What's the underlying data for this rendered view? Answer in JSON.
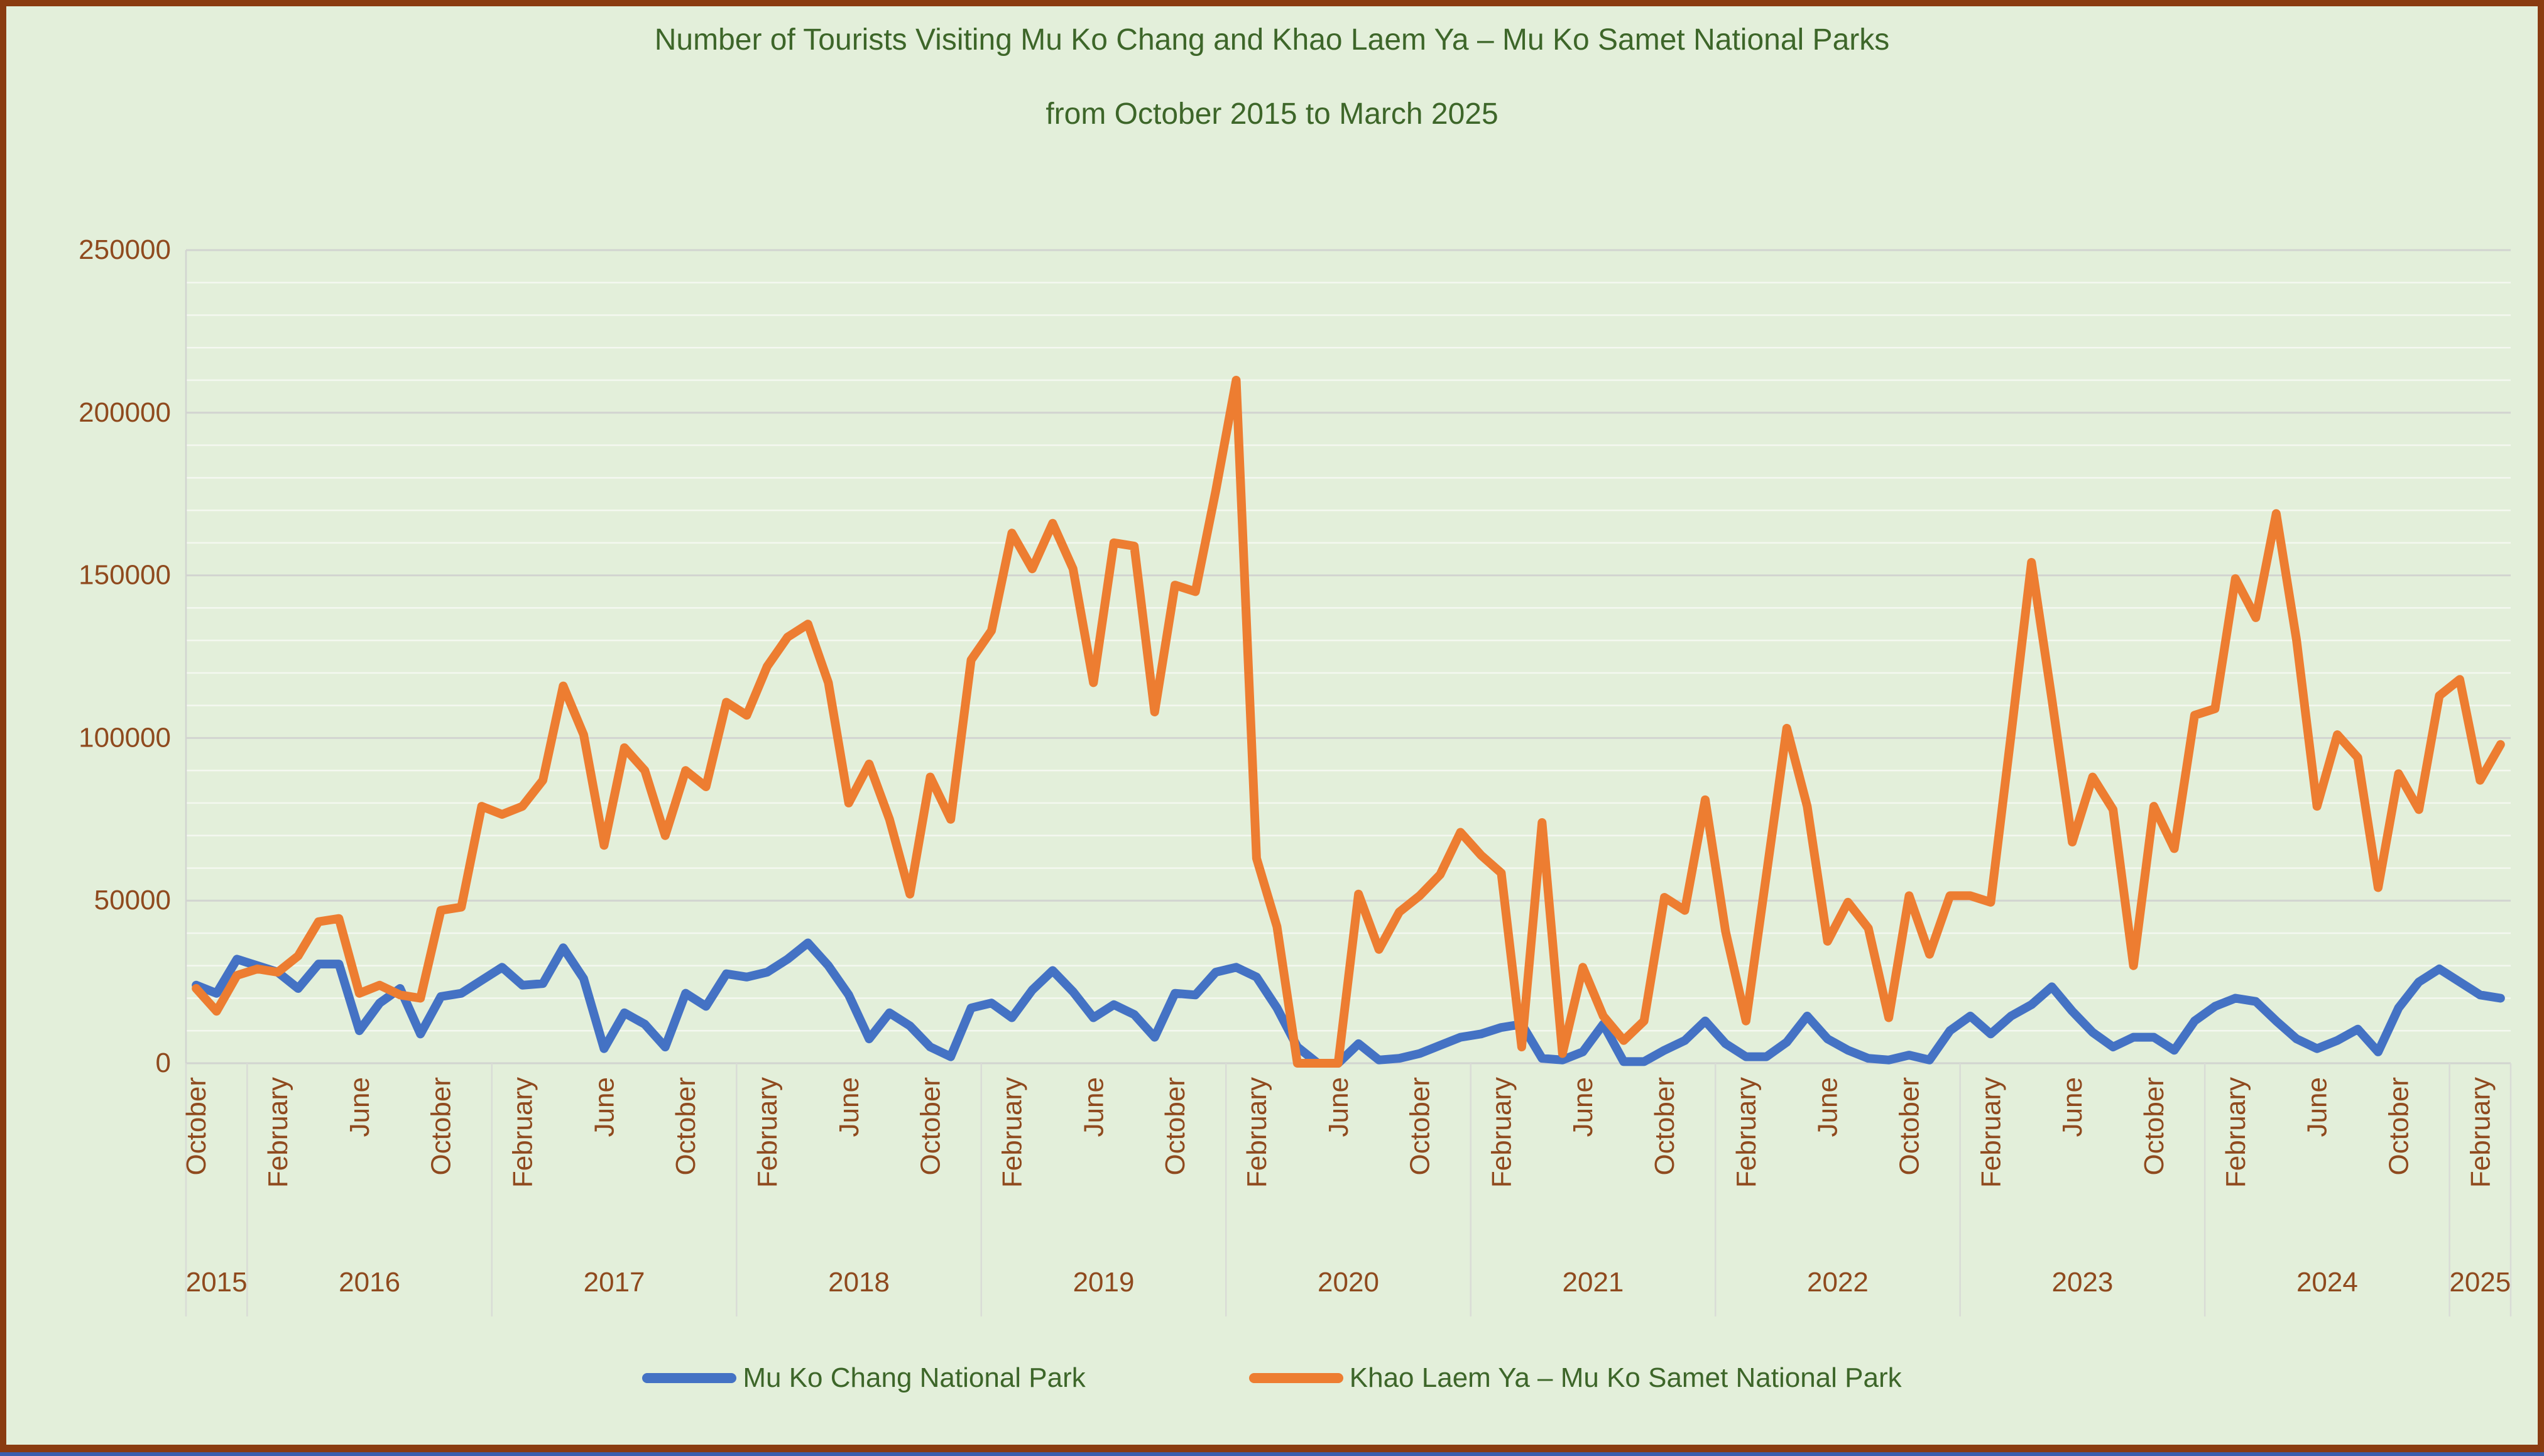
{
  "title": {
    "line1": "Number of Tourists Visiting Mu Ko Chang and Khao Laem Ya – Mu Ko Samet National Parks",
    "line2": "from October 2015 to March 2025"
  },
  "legend": [
    {
      "label": "Mu Ko Chang National Park",
      "color": "#4472C4"
    },
    {
      "label": "Khao Laem Ya – Mu Ko Samet National Park",
      "color": "#ED7D31"
    }
  ],
  "colors": {
    "background": "#e3efda",
    "frame_brown": "#8a3c10",
    "bottom_blue": "#3b5fae",
    "title_green": "#3d6629",
    "axis_label_brown": "#8f4a1e",
    "major_grid": "#d2d4d0",
    "minor_grid": "#f4f8f0",
    "series_blue": "#4472C4",
    "series_orange": "#ED7D31"
  },
  "chart_data": {
    "type": "line",
    "title": "Number of Tourists Visiting Mu Ko Chang and Khao Laem Ya – Mu Ko Samet National Parks from October 2015 to March 2025",
    "xlabel": "",
    "ylabel": "",
    "ylim": [
      0,
      250000
    ],
    "y_ticks": [
      0,
      50000,
      100000,
      150000,
      200000,
      250000
    ],
    "minor_grid_step": 10000,
    "grid": true,
    "legend_position": "bottom",
    "x_tick_every": 4,
    "month_name_map": {
      "Oct": "October",
      "Nov": "November",
      "Dec": "December",
      "Jan": "January",
      "Feb": "February",
      "Mar": "March",
      "Apr": "April",
      "May": "May",
      "Jun": "June",
      "Jul": "July",
      "Aug": "August",
      "Sep": "September"
    },
    "categories": [
      "Oct 2015",
      "Nov 2015",
      "Dec 2015",
      "Jan 2016",
      "Feb 2016",
      "Mar 2016",
      "Apr 2016",
      "May 2016",
      "Jun 2016",
      "Jul 2016",
      "Aug 2016",
      "Sep 2016",
      "Oct 2016",
      "Nov 2016",
      "Dec 2016",
      "Jan 2017",
      "Feb 2017",
      "Mar 2017",
      "Apr 2017",
      "May 2017",
      "Jun 2017",
      "Jul 2017",
      "Aug 2017",
      "Sep 2017",
      "Oct 2017",
      "Nov 2017",
      "Dec 2017",
      "Jan 2018",
      "Feb 2018",
      "Mar 2018",
      "Apr 2018",
      "May 2018",
      "Jun 2018",
      "Jul 2018",
      "Aug 2018",
      "Sep 2018",
      "Oct 2018",
      "Nov 2018",
      "Dec 2018",
      "Jan 2019",
      "Feb 2019",
      "Mar 2019",
      "Apr 2019",
      "May 2019",
      "Jun 2019",
      "Jul 2019",
      "Aug 2019",
      "Sep 2019",
      "Oct 2019",
      "Nov 2019",
      "Dec 2019",
      "Jan 2020",
      "Feb 2020",
      "Mar 2020",
      "Apr 2020",
      "May 2020",
      "Jun 2020",
      "Jul 2020",
      "Aug 2020",
      "Sep 2020",
      "Oct 2020",
      "Nov 2020",
      "Dec 2020",
      "Jan 2021",
      "Feb 2021",
      "Mar 2021",
      "Apr 2021",
      "May 2021",
      "Jun 2021",
      "Jul 2021",
      "Aug 2021",
      "Sep 2021",
      "Oct 2021",
      "Nov 2021",
      "Dec 2021",
      "Jan 2022",
      "Feb 2022",
      "Mar 2022",
      "Apr 2022",
      "May 2022",
      "Jun 2022",
      "Jul 2022",
      "Aug 2022",
      "Sep 2022",
      "Oct 2022",
      "Nov 2022",
      "Dec 2022",
      "Jan 2023",
      "Feb 2023",
      "Mar 2023",
      "Apr 2023",
      "May 2023",
      "Jun 2023",
      "Jul 2023",
      "Aug 2023",
      "Sep 2023",
      "Oct 2023",
      "Nov 2023",
      "Dec 2023",
      "Jan 2024",
      "Feb 2024",
      "Mar 2024",
      "Apr 2024",
      "May 2024",
      "Jun 2024",
      "Jul 2024",
      "Aug 2024",
      "Sep 2024",
      "Oct 2024",
      "Nov 2024",
      "Dec 2024",
      "Jan 2025",
      "Feb 2025",
      "Mar 2025"
    ],
    "years": [
      {
        "label": "2015",
        "from": 0,
        "to": 2
      },
      {
        "label": "2016",
        "from": 3,
        "to": 14
      },
      {
        "label": "2017",
        "from": 15,
        "to": 26
      },
      {
        "label": "2018",
        "from": 27,
        "to": 38
      },
      {
        "label": "2019",
        "from": 39,
        "to": 50
      },
      {
        "label": "2020",
        "from": 51,
        "to": 62
      },
      {
        "label": "2021",
        "from": 63,
        "to": 74
      },
      {
        "label": "2022",
        "from": 75,
        "to": 86
      },
      {
        "label": "2023",
        "from": 87,
        "to": 98
      },
      {
        "label": "2024",
        "from": 99,
        "to": 110
      },
      {
        "label": "2025",
        "from": 111,
        "to": 113
      }
    ],
    "series": [
      {
        "name": "Mu Ko Chang National Park",
        "color": "#4472C4",
        "values": [
          24000,
          21500,
          32000,
          30000,
          28000,
          23000,
          30500,
          30500,
          10000,
          18500,
          23000,
          9000,
          20500,
          21500,
          25500,
          29500,
          24000,
          24500,
          35500,
          26000,
          4500,
          15500,
          12000,
          5000,
          21500,
          17500,
          27500,
          26500,
          28000,
          32000,
          37000,
          30000,
          21000,
          7500,
          15500,
          11500,
          5000,
          2000,
          17000,
          18500,
          14000,
          22500,
          28500,
          22000,
          14000,
          18000,
          15000,
          8000,
          21500,
          21000,
          28000,
          29500,
          26500,
          17000,
          5000,
          0,
          0,
          6000,
          1000,
          1500,
          3000,
          5500,
          8000,
          9000,
          11000,
          12000,
          1500,
          1000,
          3500,
          12000,
          500,
          500,
          4000,
          7000,
          13000,
          6000,
          2000,
          2000,
          6500,
          14500,
          7500,
          4000,
          1500,
          1000,
          2500,
          1000,
          10000,
          14500,
          9000,
          14500,
          18000,
          23500,
          16000,
          9500,
          5000,
          8000,
          8000,
          4000,
          13000,
          17500,
          20000,
          19000,
          13000,
          7500,
          4500,
          7000,
          10500,
          3500,
          17000,
          25000,
          29000,
          25000,
          21000,
          20000
        ]
      },
      {
        "name": "Khao Laem Ya – Mu Ko Samet National Park",
        "color": "#ED7D31",
        "values": [
          23000,
          16000,
          27000,
          29000,
          28000,
          33000,
          43500,
          44500,
          21500,
          24000,
          21000,
          20000,
          47000,
          48000,
          79000,
          76500,
          79000,
          87000,
          116000,
          101000,
          67000,
          97000,
          90000,
          70000,
          90000,
          85000,
          111000,
          107000,
          122000,
          131000,
          135000,
          117000,
          80000,
          92000,
          75000,
          52000,
          88000,
          75000,
          124000,
          133000,
          163000,
          152000,
          166000,
          152000,
          117000,
          160000,
          159000,
          108000,
          147000,
          145000,
          176000,
          210000,
          63000,
          42000,
          0,
          0,
          0,
          52000,
          35000,
          46500,
          51500,
          58000,
          71000,
          64000,
          58500,
          5000,
          74000,
          3000,
          29500,
          14500,
          7000,
          13000,
          51000,
          47000,
          81000,
          40500,
          13000,
          58000,
          103000,
          79000,
          37500,
          49500,
          41500,
          14000,
          51500,
          33500,
          51500,
          51500,
          49500,
          101000,
          154000,
          112000,
          68000,
          88000,
          78000,
          30000,
          79000,
          66000,
          107000,
          109000,
          149000,
          137000,
          169000,
          130000,
          79000,
          101000,
          94000,
          54000,
          89000,
          78000,
          113000,
          118000,
          87000,
          98000
        ]
      }
    ]
  }
}
